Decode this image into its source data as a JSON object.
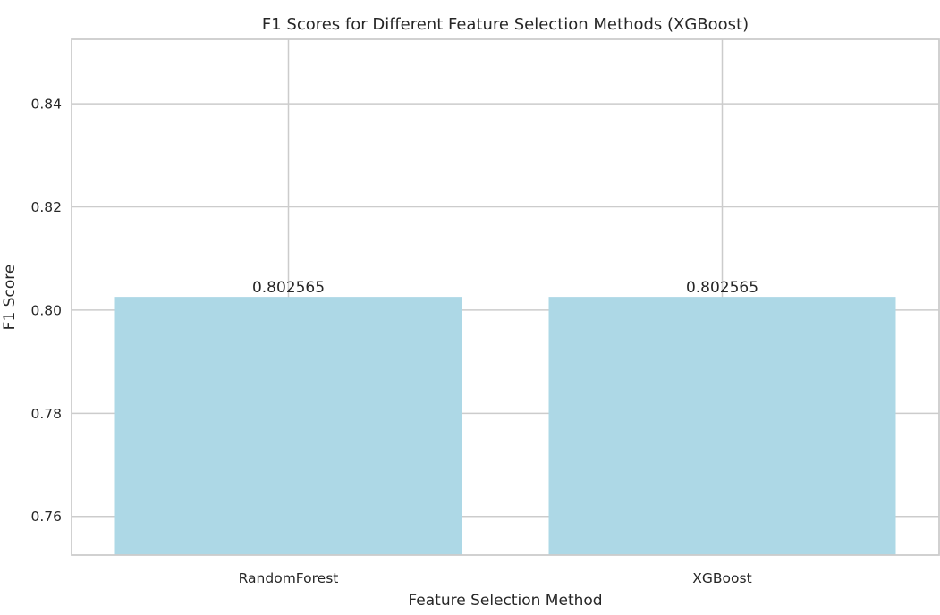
{
  "chart_data": {
    "type": "bar",
    "title": "F1 Scores for Different Feature Selection Methods (XGBoost)",
    "xlabel": "Feature Selection Method",
    "ylabel": "F1 Score",
    "categories": [
      "RandomForest",
      "XGBoost"
    ],
    "values": [
      0.802565,
      0.802565
    ],
    "data_labels": [
      "0.802565",
      "0.802565"
    ],
    "ylim": [
      0.7525,
      0.8525
    ],
    "yticks": [
      0.76,
      0.78,
      0.8,
      0.82,
      0.84
    ],
    "ytick_labels": [
      "0.76",
      "0.78",
      "0.80",
      "0.82",
      "0.84"
    ],
    "grid": true,
    "legend": "none",
    "colors": {
      "bar": "#ADD8E6",
      "grid": "#cccccc",
      "frame": "#cccccc",
      "text": "#262626",
      "background": "#ffffff"
    }
  }
}
